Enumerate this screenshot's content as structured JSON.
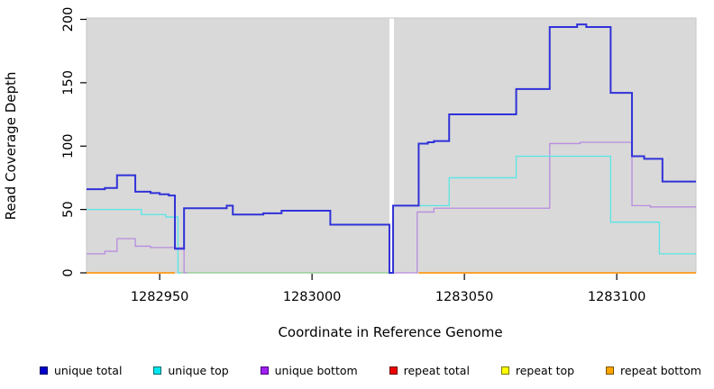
{
  "chart_data": {
    "type": "line",
    "subtype": "step-coverage",
    "title": "",
    "xlabel": "Coordinate in Reference Genome",
    "ylabel": "Read Coverage Depth",
    "xlim": [
      1282926,
      1283126
    ],
    "ylim": [
      0,
      200
    ],
    "x_ticks": [
      1282950,
      1283000,
      1283050,
      1283100
    ],
    "y_ticks": [
      0,
      50,
      100,
      150,
      200
    ],
    "plot_background": "#d9d9d9",
    "plot_border_color": "#c6c6c6",
    "grid": "off",
    "legend_position": "bottom",
    "gap_region": {
      "from": 1283025.4,
      "to": 1283026.9,
      "color": "#ffffff"
    },
    "zero_baseline_mid": {
      "from": 1282956,
      "to": 1283025.4,
      "value": 0,
      "color": "#8cc98c"
    },
    "series": [
      {
        "name": "repeat total",
        "color": "#dd0000",
        "width": 1.2,
        "segments": [
          [
            [
              1282926,
              0
            ],
            [
              1282955,
              0
            ]
          ],
          [
            [
              1283035,
              0
            ],
            [
              1283126,
              0
            ]
          ]
        ]
      },
      {
        "name": "repeat top",
        "color": "#ffff00",
        "width": 1.2,
        "segments": [
          [
            [
              1282926,
              0
            ],
            [
              1282955,
              0
            ]
          ],
          [
            [
              1283035,
              0
            ],
            [
              1283126,
              0
            ]
          ]
        ]
      },
      {
        "name": "repeat bottom",
        "color": "#ff9914",
        "width": 1.4,
        "segments": [
          [
            [
              1282926,
              0
            ],
            [
              1282955,
              0
            ]
          ],
          [
            [
              1283035,
              0
            ],
            [
              1283126,
              0
            ]
          ]
        ]
      },
      {
        "name": "unique bottom",
        "color": "#b88ce0",
        "width": 1.3,
        "segments": [
          [
            [
              1282926,
              15
            ],
            [
              1282932,
              17
            ],
            [
              1282936,
              27
            ],
            [
              1282942,
              21
            ],
            [
              1282947,
              20
            ],
            [
              1282958,
              0
            ],
            [
              1282959,
              0
            ]
          ],
          [
            [
              1283026.9,
              0
            ],
            [
              1283034.5,
              48
            ],
            [
              1283040,
              51
            ],
            [
              1283078,
              102
            ],
            [
              1283088,
              103
            ],
            [
              1283105,
              53
            ],
            [
              1283111,
              52
            ],
            [
              1283126,
              52
            ]
          ]
        ]
      },
      {
        "name": "unique top",
        "color": "#59e5e5",
        "width": 1.3,
        "segments": [
          [
            [
              1282926,
              50
            ],
            [
              1282944,
              46
            ],
            [
              1282952,
              44
            ],
            [
              1282956,
              0
            ],
            [
              1282957,
              0
            ]
          ],
          [
            [
              1283026.6,
              53
            ],
            [
              1283045,
              75
            ],
            [
              1283067,
              92
            ],
            [
              1283098,
              40
            ],
            [
              1283114,
              15
            ],
            [
              1283126,
              15
            ]
          ]
        ]
      },
      {
        "name": "unique total",
        "color": "#3032d8",
        "width": 2,
        "segments": [
          [
            [
              1282926,
              66
            ],
            [
              1282932,
              67
            ],
            [
              1282936,
              77
            ],
            [
              1282942,
              64
            ],
            [
              1282947,
              63
            ],
            [
              1282950,
              62
            ],
            [
              1282953,
              61
            ],
            [
              1282955,
              19
            ],
            [
              1282958,
              51
            ],
            [
              1282972,
              53
            ],
            [
              1282974,
              46
            ],
            [
              1282984,
              47
            ],
            [
              1282990,
              49
            ],
            [
              1283006,
              38
            ],
            [
              1283025.4,
              0
            ],
            [
              1283026.6,
              53
            ],
            [
              1283035,
              102
            ],
            [
              1283038,
              103
            ],
            [
              1283040,
              104
            ],
            [
              1283045,
              125
            ],
            [
              1283067,
              145
            ],
            [
              1283078,
              194
            ],
            [
              1283087,
              196
            ],
            [
              1283090,
              194
            ],
            [
              1283098,
              142
            ],
            [
              1283105,
              92
            ],
            [
              1283109,
              90
            ],
            [
              1283115,
              72
            ],
            [
              1283126,
              72
            ]
          ]
        ]
      }
    ],
    "legend": [
      {
        "label": "unique total",
        "color": "#0000cc",
        "border": "#000066"
      },
      {
        "label": "unique top",
        "color": "#00e5ee",
        "border": "#006b6b"
      },
      {
        "label": "unique bottom",
        "color": "#a020f0",
        "border": "#4b0082"
      },
      {
        "label": "repeat total",
        "color": "#ee0000",
        "border": "#660000"
      },
      {
        "label": "repeat top",
        "color": "#ffff00",
        "border": "#7a7a00"
      },
      {
        "label": "repeat bottom",
        "color": "#ffa500",
        "border": "#7a5200"
      }
    ]
  }
}
